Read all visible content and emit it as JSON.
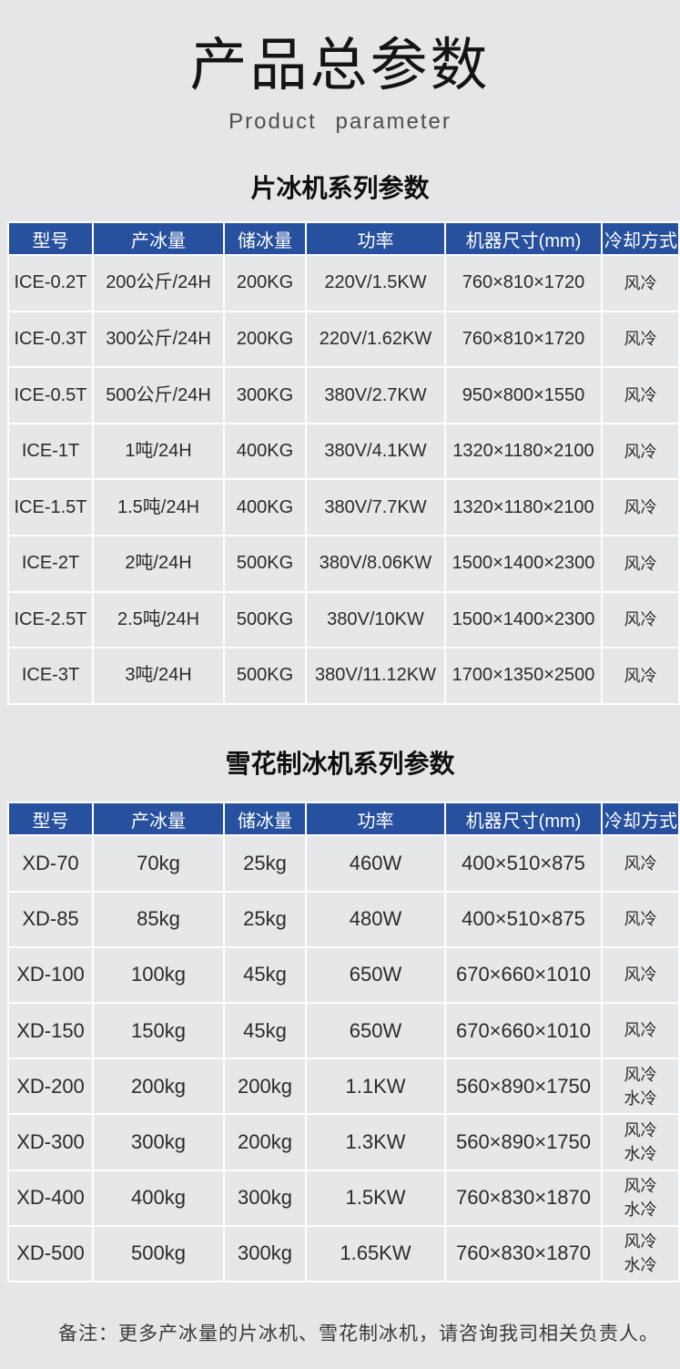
{
  "page": {
    "title": "产品总参数",
    "subtitle": "Product parameter",
    "note": "备注：更多产冰量的片冰机、雪花制冰机，请咨询我司相关负责人。"
  },
  "colors": {
    "page_bg": "#e5e6e7",
    "header_bg": "#27519e",
    "header_text": "#ffffff",
    "grid_line": "#ffffff",
    "cell_text": "#2b2b2b",
    "title_text": "#141414",
    "subtitle_text": "#4f4f4f"
  },
  "tables": [
    {
      "section_title": "片冰机系列参数",
      "headers": [
        "型号",
        "产冰量",
        "储冰量",
        "功率",
        "机器尺寸(mm)",
        "冷却方式"
      ],
      "rows": [
        [
          "ICE-0.2T",
          "200公斤/24H",
          "200KG",
          "220V/1.5KW",
          "760×810×1720",
          "风冷"
        ],
        [
          "ICE-0.3T",
          "300公斤/24H",
          "200KG",
          "220V/1.62KW",
          "760×810×1720",
          "风冷"
        ],
        [
          "ICE-0.5T",
          "500公斤/24H",
          "300KG",
          "380V/2.7KW",
          "950×800×1550",
          "风冷"
        ],
        [
          "ICE-1T",
          "1吨/24H",
          "400KG",
          "380V/4.1KW",
          "1320×1180×2100",
          "风冷"
        ],
        [
          "ICE-1.5T",
          "1.5吨/24H",
          "400KG",
          "380V/7.7KW",
          "1320×1180×2100",
          "风冷"
        ],
        [
          "ICE-2T",
          "2吨/24H",
          "500KG",
          "380V/8.06KW",
          "1500×1400×2300",
          "风冷"
        ],
        [
          "ICE-2.5T",
          "2.5吨/24H",
          "500KG",
          "380V/10KW",
          "1500×1400×2300",
          "风冷"
        ],
        [
          "ICE-3T",
          "3吨/24H",
          "500KG",
          "380V/11.12KW",
          "1700×1350×2500",
          "风冷"
        ]
      ]
    },
    {
      "section_title": "雪花制冰机系列参数",
      "headers": [
        "型号",
        "产冰量",
        "储冰量",
        "功率",
        "机器尺寸(mm)",
        "冷却方式"
      ],
      "rows": [
        [
          "XD-70",
          "70kg",
          "25kg",
          "460W",
          "400×510×875",
          "风冷"
        ],
        [
          "XD-85",
          "85kg",
          "25kg",
          "480W",
          "400×510×875",
          "风冷"
        ],
        [
          "XD-100",
          "100kg",
          "45kg",
          "650W",
          "670×660×1010",
          "风冷"
        ],
        [
          "XD-150",
          "150kg",
          "45kg",
          "650W",
          "670×660×1010",
          "风冷"
        ],
        [
          "XD-200",
          "200kg",
          "200kg",
          "1.1KW",
          "560×890×1750",
          "风冷\n水冷"
        ],
        [
          "XD-300",
          "300kg",
          "200kg",
          "1.3KW",
          "560×890×1750",
          "风冷\n水冷"
        ],
        [
          "XD-400",
          "400kg",
          "300kg",
          "1.5KW",
          "760×830×1870",
          "风冷\n水冷"
        ],
        [
          "XD-500",
          "500kg",
          "300kg",
          "1.65KW",
          "760×830×1870",
          "风冷\n水冷"
        ]
      ]
    }
  ]
}
